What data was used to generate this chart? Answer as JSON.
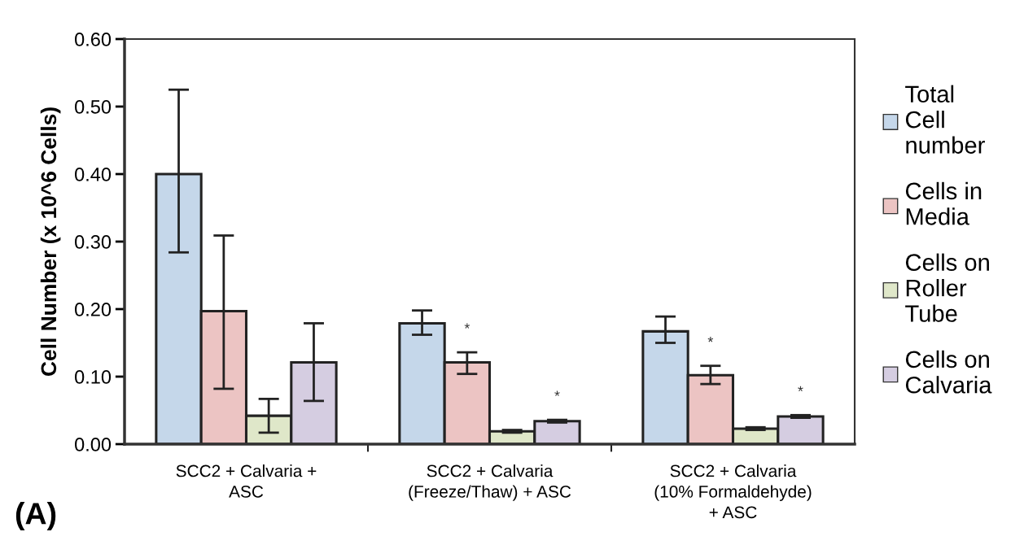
{
  "chart_data": {
    "type": "bar",
    "ylabel": "Cell Number (x 10^6 Cells)",
    "categories": [
      "SCC2 + Calvaria +\nASC",
      "SCC2 + Calvaria\n(Freeze/Thaw) + ASC",
      "SCC2 + Calvaria\n(10% Formaldehyde)\n+ ASC"
    ],
    "series": [
      {
        "name": "Total\nCell\nnumber",
        "color": "#c5d7ea",
        "values": [
          0.4,
          0.179,
          0.167
        ],
        "errors": [
          [
            0.284,
            0.525
          ],
          [
            0.162,
            0.198
          ],
          [
            0.15,
            0.189
          ]
        ]
      },
      {
        "name": "Cells in\nMedia",
        "color": "#ecc4c3",
        "values": [
          0.197,
          0.121,
          0.102
        ],
        "errors": [
          [
            0.082,
            0.309
          ],
          [
            0.104,
            0.136
          ],
          [
            0.089,
            0.116
          ]
        ],
        "value_labels": [
          null,
          "*",
          "*"
        ]
      },
      {
        "name": "Cells on\nRoller\nTube",
        "color": "#dfe7c9",
        "values": [
          0.042,
          0.019,
          0.023
        ],
        "errors": [
          [
            0.017,
            0.067
          ],
          [
            0.017,
            0.021
          ],
          [
            0.021,
            0.025
          ]
        ]
      },
      {
        "name": "Cells on\nCalvaria",
        "color": "#d5cde1",
        "values": [
          0.121,
          0.034,
          0.041
        ],
        "errors": [
          [
            0.064,
            0.179
          ],
          [
            0.032,
            0.036
          ],
          [
            0.039,
            0.043
          ]
        ],
        "value_labels": [
          null,
          "*",
          "*"
        ]
      }
    ],
    "ylim": [
      0,
      0.6
    ],
    "yticks": [
      {
        "value": 0,
        "label": "0.00"
      },
      {
        "value": 0.1,
        "label": "0.10"
      },
      {
        "value": 0.2,
        "label": "0.20"
      },
      {
        "value": 0.3,
        "label": "0.30"
      },
      {
        "value": 0.4,
        "label": "0.40"
      },
      {
        "value": 0.5,
        "label": "0.50"
      },
      {
        "value": 0.6,
        "label": "0.60"
      }
    ],
    "grid": false,
    "legend": "right",
    "annotations": [
      "(A)"
    ]
  }
}
